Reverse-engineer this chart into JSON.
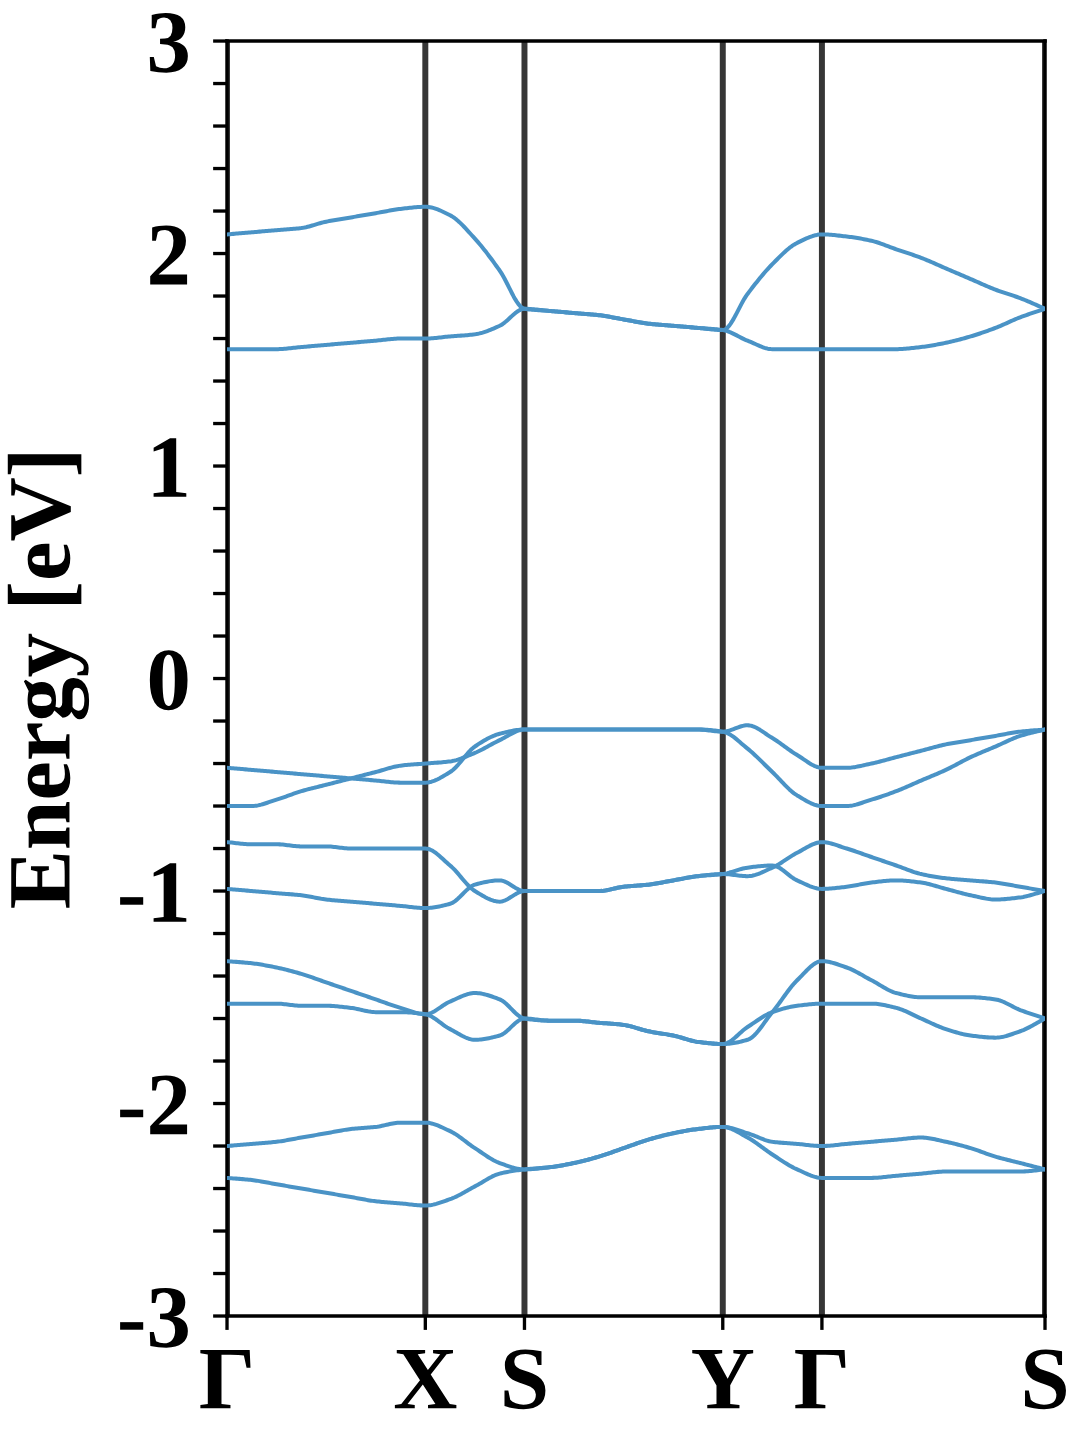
{
  "chart_data": {
    "type": "line",
    "ylabel": "Energy [eV]",
    "categories": [
      "Γ",
      null,
      null,
      null,
      null,
      null,
      null,
      null,
      "X",
      null,
      null,
      null,
      "S",
      null,
      null,
      null,
      null,
      null,
      null,
      null,
      "Y",
      null,
      null,
      null,
      "Γ",
      null,
      null,
      null,
      null,
      null,
      null,
      null,
      null,
      "S"
    ],
    "ylim": [
      -3,
      3
    ],
    "yticks": [
      -3,
      {
        "value": -2.8,
        "label": null
      },
      {
        "value": -2.6,
        "label": null
      },
      {
        "value": -2.4,
        "label": null
      },
      {
        "value": -2.2,
        "label": null
      },
      -2,
      {
        "value": -1.8,
        "label": null
      },
      {
        "value": -1.6,
        "label": null
      },
      {
        "value": -1.4,
        "label": null
      },
      {
        "value": -1.2,
        "label": null
      },
      -1,
      {
        "value": -0.8,
        "label": null
      },
      {
        "value": -0.6,
        "label": null
      },
      {
        "value": -0.4,
        "label": null
      },
      {
        "value": -0.2,
        "label": null
      },
      0,
      {
        "value": 0.2,
        "label": null
      },
      {
        "value": 0.4,
        "label": null
      },
      {
        "value": 0.6,
        "label": null
      },
      {
        "value": 0.8,
        "label": null
      },
      1,
      {
        "value": 1.2,
        "label": null
      },
      {
        "value": 1.4,
        "label": null
      },
      {
        "value": 1.6,
        "label": null
      },
      {
        "value": 1.8,
        "label": null
      },
      2,
      {
        "value": 2.2,
        "label": null
      },
      {
        "value": 2.4,
        "label": null
      },
      {
        "value": 2.6,
        "label": null
      },
      {
        "value": 2.8,
        "label": null
      },
      3
    ],
    "grid": "x",
    "series": [
      {
        "color": "#4a93c6",
        "values": [
          2.09,
          2.1,
          2.11,
          2.12,
          2.15,
          2.17,
          2.19,
          2.21,
          2.22,
          2.18,
          2.07,
          1.92,
          1.74,
          1.73,
          1.72,
          1.71,
          1.69,
          1.67,
          1.66,
          1.65,
          1.64,
          1.81,
          1.95,
          2.05,
          2.09,
          2.08,
          2.06,
          2.02,
          1.98,
          1.93,
          1.88,
          1.83,
          1.79,
          1.74
        ]
      },
      {
        "color": "#4a93c6",
        "values": [
          1.55,
          1.55,
          1.55,
          1.56,
          1.57,
          1.58,
          1.59,
          1.6,
          1.6,
          1.61,
          1.62,
          1.66,
          1.74,
          1.73,
          1.72,
          1.71,
          1.69,
          1.67,
          1.66,
          1.65,
          1.64,
          1.59,
          1.55,
          1.55,
          1.55,
          1.55,
          1.55,
          1.55,
          1.56,
          1.58,
          1.61,
          1.65,
          1.7,
          1.74
        ]
      },
      {
        "color": "#4a93c6",
        "values": [
          -0.42,
          -0.43,
          -0.44,
          -0.45,
          -0.46,
          -0.47,
          -0.48,
          -0.49,
          -0.49,
          -0.44,
          -0.32,
          -0.26,
          -0.24,
          -0.24,
          -0.24,
          -0.24,
          -0.24,
          -0.24,
          -0.24,
          -0.24,
          -0.25,
          -0.22,
          -0.28,
          -0.36,
          -0.42,
          -0.42,
          -0.4,
          -0.37,
          -0.34,
          -0.31,
          -0.29,
          -0.27,
          -0.25,
          -0.24
        ]
      },
      {
        "color": "#4a93c6",
        "values": [
          -0.6,
          -0.6,
          -0.57,
          -0.53,
          -0.5,
          -0.47,
          -0.44,
          -0.41,
          -0.4,
          -0.39,
          -0.35,
          -0.29,
          -0.24,
          -0.24,
          -0.24,
          -0.24,
          -0.24,
          -0.24,
          -0.24,
          -0.24,
          -0.25,
          -0.33,
          -0.44,
          -0.55,
          -0.6,
          -0.6,
          -0.57,
          -0.53,
          -0.48,
          -0.43,
          -0.37,
          -0.32,
          -0.27,
          -0.24
        ]
      },
      {
        "color": "#4a93c6",
        "values": [
          -0.77,
          -0.78,
          -0.78,
          -0.79,
          -0.79,
          -0.8,
          -0.8,
          -0.8,
          -0.8,
          -0.88,
          -1.0,
          -1.05,
          -1.0,
          -1.0,
          -1.0,
          -1.0,
          -0.98,
          -0.97,
          -0.95,
          -0.93,
          -0.92,
          -0.93,
          -0.89,
          -0.82,
          -0.77,
          -0.8,
          -0.84,
          -0.88,
          -0.92,
          -0.94,
          -0.95,
          -0.96,
          -0.98,
          -1.0
        ]
      },
      {
        "color": "#4a93c6",
        "values": [
          -0.99,
          -1.0,
          -1.01,
          -1.02,
          -1.04,
          -1.05,
          -1.06,
          -1.07,
          -1.08,
          -1.06,
          -0.97,
          -0.95,
          -1.0,
          -1.0,
          -1.0,
          -1.0,
          -0.98,
          -0.97,
          -0.95,
          -0.93,
          -0.92,
          -0.89,
          -0.88,
          -0.95,
          -0.99,
          -0.98,
          -0.96,
          -0.95,
          -0.96,
          -0.99,
          -1.02,
          -1.04,
          -1.03,
          -1.0
        ]
      },
      {
        "color": "#4a93c6",
        "values": [
          -1.33,
          -1.34,
          -1.36,
          -1.39,
          -1.43,
          -1.47,
          -1.51,
          -1.55,
          -1.58,
          -1.52,
          -1.48,
          -1.51,
          -1.6,
          -1.61,
          -1.61,
          -1.62,
          -1.63,
          -1.66,
          -1.68,
          -1.71,
          -1.72,
          -1.7,
          -1.57,
          -1.42,
          -1.33,
          -1.36,
          -1.42,
          -1.48,
          -1.5,
          -1.5,
          -1.5,
          -1.51,
          -1.56,
          -1.6
        ]
      },
      {
        "color": "#4a93c6",
        "values": [
          -1.53,
          -1.53,
          -1.53,
          -1.54,
          -1.54,
          -1.55,
          -1.57,
          -1.57,
          -1.58,
          -1.65,
          -1.7,
          -1.68,
          -1.6,
          -1.61,
          -1.61,
          -1.62,
          -1.63,
          -1.66,
          -1.68,
          -1.71,
          -1.72,
          -1.64,
          -1.57,
          -1.54,
          -1.53,
          -1.53,
          -1.53,
          -1.55,
          -1.6,
          -1.65,
          -1.68,
          -1.69,
          -1.66,
          -1.6
        ]
      },
      {
        "color": "#4a93c6",
        "values": [
          -2.2,
          -2.19,
          -2.18,
          -2.16,
          -2.14,
          -2.12,
          -2.11,
          -2.09,
          -2.09,
          -2.13,
          -2.21,
          -2.28,
          -2.31,
          -2.3,
          -2.28,
          -2.25,
          -2.21,
          -2.17,
          -2.14,
          -2.12,
          -2.11,
          -2.14,
          -2.18,
          -2.19,
          -2.2,
          -2.19,
          -2.18,
          -2.17,
          -2.16,
          -2.18,
          -2.21,
          -2.25,
          -2.28,
          -2.31
        ]
      },
      {
        "color": "#4a93c6",
        "values": [
          -2.35,
          -2.36,
          -2.38,
          -2.4,
          -2.42,
          -2.44,
          -2.46,
          -2.47,
          -2.48,
          -2.45,
          -2.39,
          -2.33,
          -2.31,
          -2.3,
          -2.28,
          -2.25,
          -2.21,
          -2.17,
          -2.14,
          -2.12,
          -2.11,
          -2.16,
          -2.24,
          -2.31,
          -2.35,
          -2.35,
          -2.35,
          -2.34,
          -2.33,
          -2.32,
          -2.32,
          -2.32,
          -2.32,
          -2.31
        ]
      }
    ]
  }
}
